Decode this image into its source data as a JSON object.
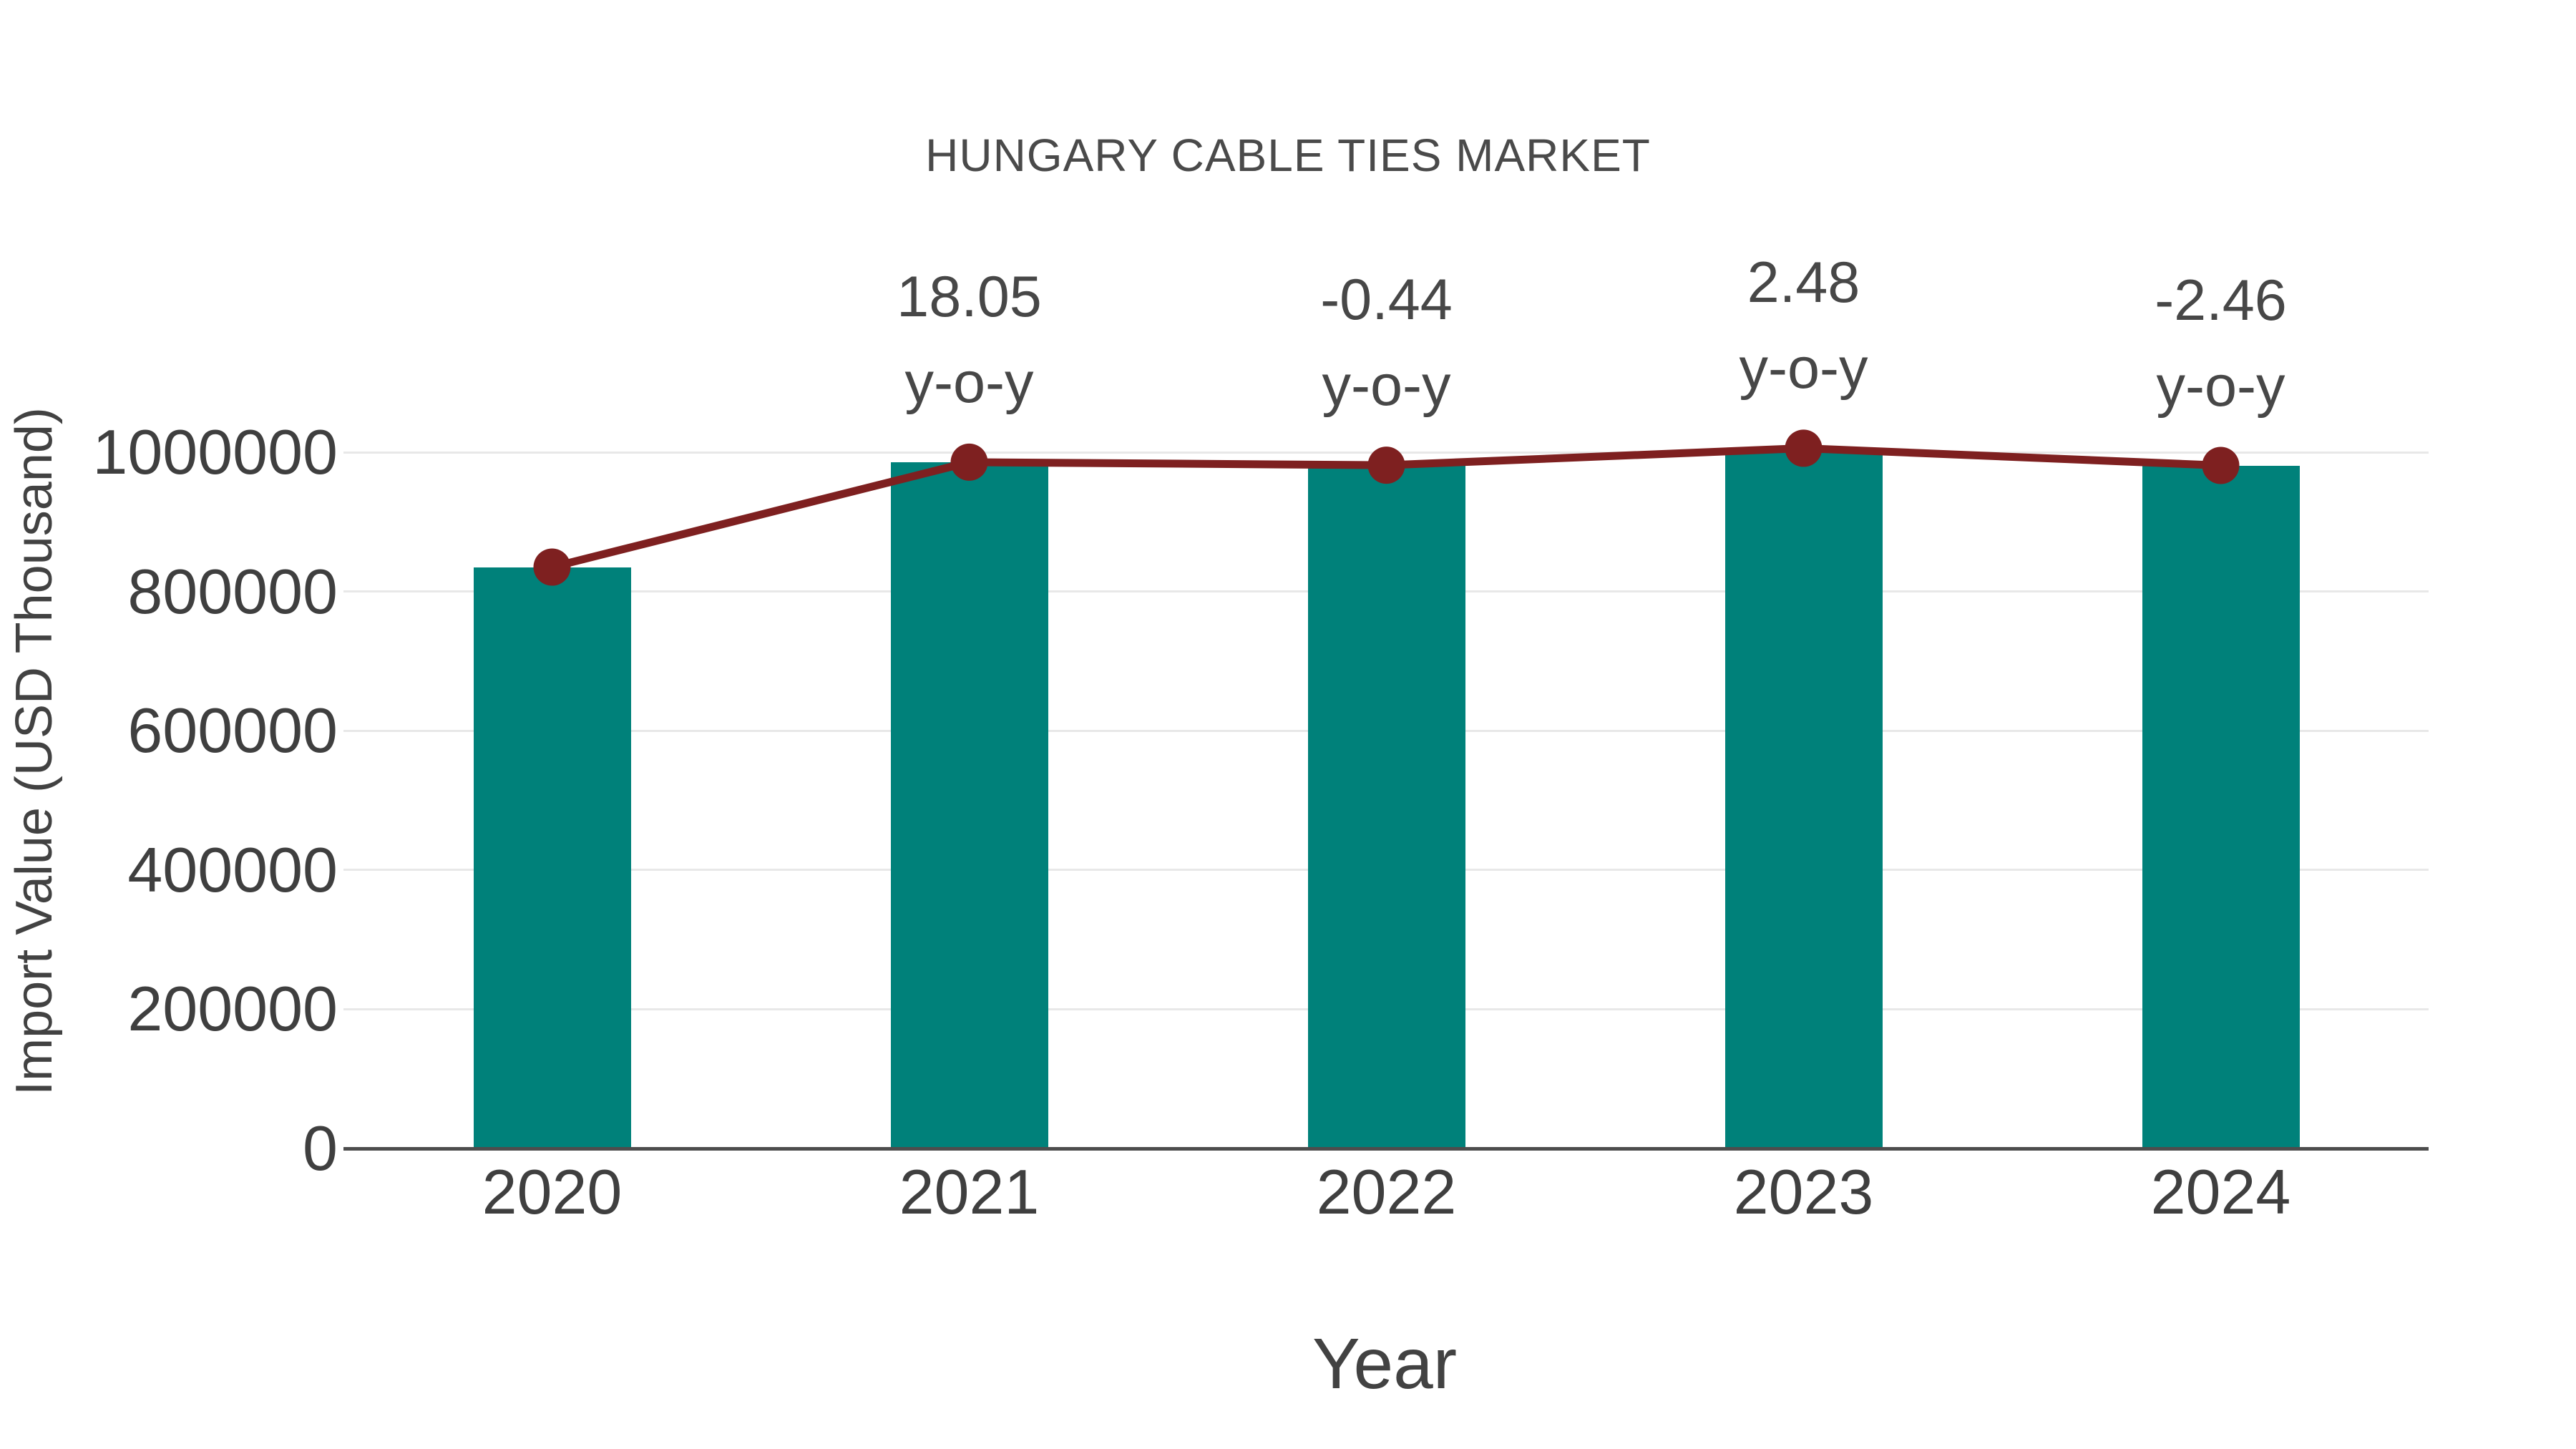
{
  "chart_data": {
    "type": "bar+line",
    "title": "HUNGARY CABLE TIES MARKET",
    "xlabel": "Year",
    "ylabel": "Import Value (USD Thousand)",
    "categories": [
      "2020",
      "2021",
      "2022",
      "2023",
      "2024"
    ],
    "series": [
      {
        "name": "import-value-bars",
        "type": "bar",
        "values": [
          835000,
          985718,
          981380,
          1005718,
          980977
        ]
      },
      {
        "name": "import-value-trend-line",
        "type": "line",
        "values": [
          835000,
          985718,
          981380,
          1005718,
          980977
        ]
      }
    ],
    "annotations": [
      {
        "category": "2021",
        "value_label": "18.05",
        "unit_label": "y-o-y"
      },
      {
        "category": "2022",
        "value_label": "-0.44",
        "unit_label": "y-o-y"
      },
      {
        "category": "2023",
        "value_label": "2.48",
        "unit_label": "y-o-y"
      },
      {
        "category": "2024",
        "value_label": "-2.46",
        "unit_label": "y-o-y"
      }
    ],
    "y_axis": {
      "ticks": [
        0,
        200000,
        400000,
        600000,
        800000,
        1000000
      ],
      "tick_labels": [
        "0",
        "200000",
        "400000",
        "600000",
        "800000",
        "1000000"
      ],
      "range": [
        0,
        1000000
      ]
    },
    "grid": true,
    "legend": false,
    "colors": {
      "bar": "#00817a",
      "line": "#7e2020",
      "marker": "#7e2020",
      "title_text": "#4a4a4a",
      "tick_text": "#3f3f3f",
      "annotation_text": "#474747",
      "grid": "#e8e8e8",
      "axis": "#4d4d4d",
      "background": "#ffffff"
    }
  }
}
